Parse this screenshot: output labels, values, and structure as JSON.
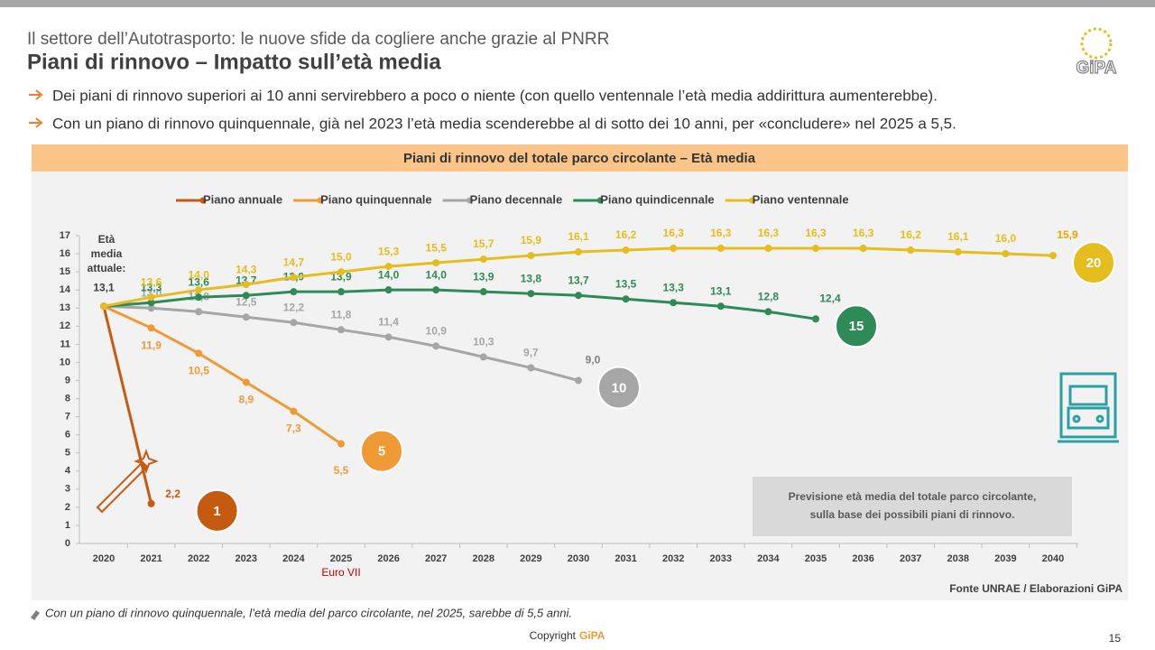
{
  "header": {
    "subtitle": "Il settore dell’Autotrasporto: le nuove sfide da cogliere anche grazie al PNRR",
    "title": "Piani di rinnovo – Impatto sull’età media",
    "logo": "GiPA"
  },
  "bullets": [
    "Dei piani di rinnovo superiori ai 10 anni servirebbero a poco o niente (con quello ventennale l’età media addirittura aumenterebbe).",
    "Con un piano di rinnovo quinquennale, già nel 2023 l’età media scenderebbe al di sotto dei 10 anni, per «concludere» nel 2025 a 5,5."
  ],
  "chart_data": {
    "type": "line",
    "title": "Piani di rinnovo del totale parco circolante – Età media",
    "categories": [
      "2020",
      "2021",
      "2022",
      "2023",
      "2024",
      "2025",
      "2026",
      "2027",
      "2028",
      "2029",
      "2030",
      "2031",
      "2032",
      "2033",
      "2034",
      "2035",
      "2036",
      "2037",
      "2038",
      "2039",
      "2040"
    ],
    "ylim": [
      0,
      17
    ],
    "yticks": [
      0,
      1,
      2,
      3,
      4,
      5,
      6,
      7,
      8,
      9,
      10,
      11,
      12,
      13,
      14,
      15,
      16,
      17
    ],
    "series": [
      {
        "name": "Piano annuale",
        "color": "#c55a11",
        "badge": "1",
        "values": [
          13.1,
          2.2,
          null,
          null,
          null,
          null,
          null,
          null,
          null,
          null,
          null,
          null,
          null,
          null,
          null,
          null,
          null,
          null,
          null,
          null,
          null
        ],
        "value_labels": [
          "13,1",
          "2,2",
          null,
          null,
          null,
          null,
          null,
          null,
          null,
          null,
          null,
          null,
          null,
          null,
          null,
          null,
          null,
          null,
          null,
          null,
          null
        ]
      },
      {
        "name": "Piano quinquennale",
        "color": "#f09a36",
        "badge": "5",
        "values": [
          13.1,
          11.9,
          10.5,
          8.9,
          7.3,
          5.5,
          null,
          null,
          null,
          null,
          null,
          null,
          null,
          null,
          null,
          null,
          null,
          null,
          null,
          null,
          null
        ],
        "value_labels": [
          null,
          "11,9",
          "10,5",
          "8,9",
          "7,3",
          "5,5",
          null,
          null,
          null,
          null,
          null,
          null,
          null,
          null,
          null,
          null,
          null,
          null,
          null,
          null,
          null
        ]
      },
      {
        "name": "Piano decennale",
        "color": "#a6a6a6",
        "badge": "10",
        "values": [
          13.1,
          13.0,
          12.8,
          12.5,
          12.2,
          11.8,
          11.4,
          10.9,
          10.3,
          9.7,
          9.0,
          null,
          null,
          null,
          null,
          null,
          null,
          null,
          null,
          null,
          null
        ],
        "value_labels": [
          null,
          "13,0",
          "12,8",
          "12,5",
          "12,2",
          "11,8",
          "11,4",
          "10,9",
          "10,3",
          "9,7",
          "9,0",
          null,
          null,
          null,
          null,
          null,
          null,
          null,
          null,
          null,
          null
        ]
      },
      {
        "name": "Piano quindicennale",
        "color": "#2e8b57",
        "badge": "15",
        "values": [
          13.1,
          13.3,
          13.6,
          13.7,
          13.9,
          13.9,
          14.0,
          14.0,
          13.9,
          13.8,
          13.7,
          13.5,
          13.3,
          13.1,
          12.8,
          12.4,
          null,
          null,
          null,
          null,
          null
        ],
        "value_labels": [
          null,
          "13,3",
          "13,6",
          "13,7",
          "13,9",
          "13,9",
          "14,0",
          "14,0",
          "13,9",
          "13,8",
          "13,7",
          "13,5",
          "13,3",
          "13,1",
          "12,8",
          "12,4",
          null,
          null,
          null,
          null,
          null
        ]
      },
      {
        "name": "Piano ventennale",
        "color": "#e6bd1e",
        "badge": "20",
        "values": [
          13.1,
          13.6,
          14.0,
          14.3,
          14.7,
          15.0,
          15.3,
          15.5,
          15.7,
          15.9,
          16.1,
          16.2,
          16.3,
          16.3,
          16.3,
          16.3,
          16.3,
          16.2,
          16.1,
          16.0,
          15.9
        ],
        "value_labels": [
          null,
          "13,6",
          "14,0",
          "14,3",
          "14,7",
          "15,0",
          "15,3",
          "15,5",
          "15,7",
          "15,9",
          "16,1",
          "16,2",
          "16,3",
          "16,3",
          "16,3",
          "16,3",
          "16,3",
          "16,2",
          "16,1",
          "16,0",
          "15,9"
        ]
      }
    ],
    "annotations": {
      "current_age": "Età media attuale:",
      "euro": "Euro VII",
      "box": [
        "Previsione età media del totale parco circolante,",
        "sulla base dei possibili piani di rinnovo."
      ],
      "source": "Fonte UNRAE / Elaborazioni GiPA"
    }
  },
  "footer": {
    "note": "Con un piano di rinnovo quinquennale, l’età media del parco circolante, nel 2025, sarebbe di 5,5 anni.",
    "copyright": "Copyright",
    "brand": "GiPA",
    "page": "15"
  }
}
